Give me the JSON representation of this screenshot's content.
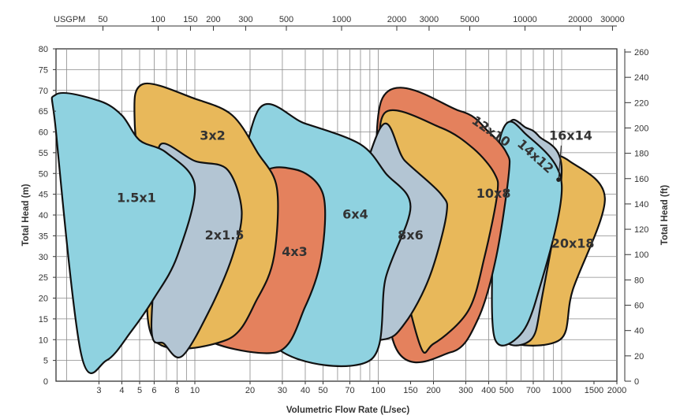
{
  "chart_data": {
    "type": "area",
    "title": "",
    "xlabel": "Volumetric Flow Rate (L/sec)",
    "ylabel": "Total Head (m)",
    "ylabel_right": "Total Head (ft)",
    "xscale": "log",
    "xlim": [
      1.75,
      2000
    ],
    "ylim": [
      0,
      80
    ],
    "y_right_lim": [
      0,
      262.5
    ],
    "grid": true,
    "x_ticks": [
      "3",
      "4",
      "5",
      "6",
      "8",
      "10",
      "20",
      "30",
      "40",
      "50",
      "70",
      "100",
      "150",
      "200",
      "300",
      "400",
      "500",
      "700",
      "1000",
      "1500",
      "2000"
    ],
    "x_gridlines": [
      2,
      3,
      4,
      5,
      6,
      7,
      8,
      9,
      10,
      20,
      30,
      40,
      50,
      60,
      70,
      80,
      90,
      100,
      200,
      300,
      400,
      500,
      600,
      700,
      800,
      900,
      1000,
      2000
    ],
    "y_ticks": [
      "0",
      "5",
      "10",
      "15",
      "20",
      "25",
      "30",
      "35",
      "40",
      "45",
      "50",
      "55",
      "60",
      "65",
      "70",
      "75",
      "80"
    ],
    "y_right_ticks": [
      "0",
      "20",
      "40",
      "60",
      "80",
      "100",
      "120",
      "140",
      "160",
      "180",
      "200",
      "220",
      "240",
      "260"
    ],
    "top_axis": {
      "unit_label": "USGPM",
      "ticks": [
        "50",
        "100",
        "150",
        "200",
        "300",
        "500",
        "1000",
        "2000",
        "3000",
        "5000",
        "10000",
        "20000",
        "30000"
      ]
    },
    "series": [
      {
        "name": "20x18",
        "color": "#e8b85a",
        "label_at": [
          1150,
          33
        ],
        "points": [
          [
            500,
            10
          ],
          [
            470,
            22
          ],
          [
            480,
            44
          ],
          [
            520,
            57
          ],
          [
            800,
            55
          ],
          [
            1100,
            53
          ],
          [
            1720,
            44
          ],
          [
            1150,
            22
          ],
          [
            980,
            10
          ]
        ]
      },
      {
        "name": "16x14",
        "color": "#b3c5d3",
        "label_at": [
          1120,
          59
        ],
        "points": [
          [
            480,
            10.5
          ],
          [
            470,
            28
          ],
          [
            480,
            46
          ],
          [
            520,
            62
          ],
          [
            640,
            61
          ],
          [
            750,
            59
          ],
          [
            1000,
            51
          ],
          [
            780,
            20
          ],
          [
            680,
            10
          ]
        ]
      },
      {
        "name": "14x12",
        "color": "#8fd2e0",
        "label_at": [
          715,
          54
        ],
        "points": [
          [
            430,
            10.5
          ],
          [
            420,
            32
          ],
          [
            440,
            53
          ],
          [
            500,
            62
          ],
          [
            620,
            60
          ],
          [
            1000,
            47.5
          ],
          [
            730,
            20
          ],
          [
            575,
            10.5
          ]
        ]
      },
      {
        "name": "12x10",
        "color": "#e4815d",
        "label_at": [
          410,
          60
        ],
        "points": [
          [
            120,
            10
          ],
          [
            103,
            67
          ],
          [
            280,
            65
          ],
          [
            400,
            60
          ],
          [
            500,
            55
          ],
          [
            515,
            50
          ],
          [
            440,
            30
          ],
          [
            350,
            15
          ],
          [
            250,
            7
          ]
        ]
      },
      {
        "name": "10x8",
        "color": "#e8b85a",
        "label_at": [
          425,
          45
        ],
        "points": [
          [
            165,
            10
          ],
          [
            110,
            45
          ],
          [
            108,
            64.5
          ],
          [
            220,
            61
          ],
          [
            330,
            56
          ],
          [
            430,
            50
          ],
          [
            445,
            45
          ],
          [
            380,
            30
          ],
          [
            310,
            17
          ],
          [
            200,
            9
          ]
        ]
      },
      {
        "name": "8x6",
        "color": "#b3c5d3",
        "label_at": [
          150,
          35
        ],
        "points": [
          [
            52,
            12
          ],
          [
            100,
            60
          ],
          [
            140,
            53
          ],
          [
            220,
            45
          ],
          [
            235,
            40
          ],
          [
            190,
            25
          ],
          [
            140,
            14
          ],
          [
            105,
            10
          ]
        ]
      },
      {
        "name": "6x4",
        "color": "#8fd2e0",
        "label_at": [
          75,
          40
        ],
        "points": [
          [
            28,
            8
          ],
          [
            17,
            32
          ],
          [
            22,
            65
          ],
          [
            40,
            62
          ],
          [
            80,
            57
          ],
          [
            110,
            50
          ],
          [
            150,
            42
          ],
          [
            110,
            25
          ],
          [
            90,
            5
          ]
        ]
      },
      {
        "name": "4x3",
        "color": "#e4815d",
        "label_at": [
          35,
          31
        ],
        "points": [
          [
            11,
            11
          ],
          [
            20,
            22
          ],
          [
            22,
            48
          ],
          [
            35,
            51
          ],
          [
            50,
            45
          ],
          [
            49,
            30
          ],
          [
            40,
            18
          ],
          [
            28,
            7
          ]
        ]
      },
      {
        "name": "3x2",
        "color": "#e8b85a",
        "label_at": [
          12.5,
          59
        ],
        "points": [
          [
            6,
            10
          ],
          [
            5.5,
            35
          ],
          [
            4.7,
            62
          ],
          [
            5.2,
            71.5
          ],
          [
            10,
            68
          ],
          [
            16,
            64
          ],
          [
            22,
            55
          ],
          [
            28,
            46.5
          ],
          [
            27,
            30
          ],
          [
            22,
            20
          ],
          [
            15,
            10
          ]
        ]
      },
      {
        "name": "2x1.5",
        "color": "#b3c5d3",
        "label_at": [
          14.5,
          35
        ],
        "points": [
          [
            5.8,
            13
          ],
          [
            6.5,
            45
          ],
          [
            6.5,
            57
          ],
          [
            10,
            53
          ],
          [
            15,
            51
          ],
          [
            18,
            41
          ],
          [
            16,
            30
          ],
          [
            12,
            17
          ],
          [
            8.5,
            6
          ],
          [
            6.8,
            9
          ]
        ]
      },
      {
        "name": "1.5x1",
        "color": "#8fd2e0",
        "label_at": [
          4.8,
          44
        ],
        "points": [
          [
            1.75,
            69
          ],
          [
            3,
            67.5
          ],
          [
            4,
            64
          ],
          [
            5,
            58
          ],
          [
            7,
            55
          ],
          [
            10,
            47
          ],
          [
            8,
            30
          ],
          [
            6,
            20
          ],
          [
            4.5,
            12
          ],
          [
            3.3,
            5
          ],
          [
            2.4,
            6.5
          ],
          [
            1.75,
            60
          ]
        ]
      }
    ]
  }
}
